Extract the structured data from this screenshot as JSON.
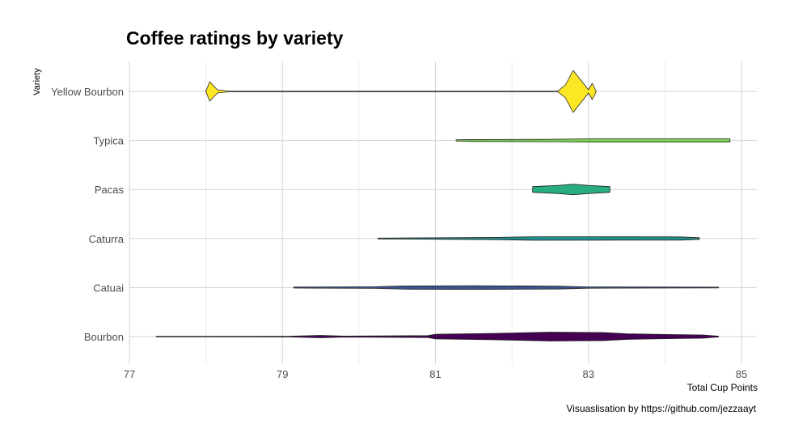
{
  "chart_data": {
    "type": "violin",
    "title": "Coffee ratings by variety",
    "xlabel": "Total Cup Points",
    "ylabel": "Variety",
    "caption": "Visuaslisation by https://github.com/jezzaayt",
    "xlim": [
      77,
      85.2
    ],
    "xticks": [
      77,
      79,
      81,
      83,
      85
    ],
    "grid": true,
    "categories": [
      "Bourbon",
      "Catuai",
      "Caturra",
      "Pacas",
      "Typica",
      "Yellow Bourbon"
    ],
    "series": [
      {
        "category": "Bourbon",
        "color": "#440154",
        "density": [
          [
            77.35,
            0.3
          ],
          [
            79.1,
            0.5
          ],
          [
            79.5,
            1.5
          ],
          [
            79.8,
            0.6
          ],
          [
            80.9,
            1.2
          ],
          [
            81.0,
            2.8
          ],
          [
            81.8,
            4.0
          ],
          [
            82.5,
            5.5
          ],
          [
            83.2,
            5.0
          ],
          [
            83.5,
            3.5
          ],
          [
            84.0,
            2.6
          ],
          [
            84.5,
            2.0
          ],
          [
            84.7,
            0.5
          ]
        ]
      },
      {
        "category": "Catuai",
        "color": "#3B528B",
        "density": [
          [
            79.15,
            0.6
          ],
          [
            80.2,
            1.0
          ],
          [
            80.6,
            2.0
          ],
          [
            81.5,
            2.3
          ],
          [
            82.6,
            1.8
          ],
          [
            83.0,
            0.8
          ],
          [
            84.0,
            0.6
          ],
          [
            84.7,
            0.5
          ]
        ]
      },
      {
        "category": "Caturra",
        "color": "#21908C",
        "density": [
          [
            80.25,
            0.5
          ],
          [
            81.2,
            1.0
          ],
          [
            81.8,
            1.4
          ],
          [
            82.3,
            2.2
          ],
          [
            83.5,
            2.1
          ],
          [
            84.2,
            2.0
          ],
          [
            84.45,
            1.0
          ]
        ]
      },
      {
        "category": "Pacas",
        "color": "#27AD81",
        "density": [
          [
            82.27,
            3.5
          ],
          [
            82.6,
            5.0
          ],
          [
            82.8,
            6.5
          ],
          [
            83.0,
            5.0
          ],
          [
            83.28,
            3.5
          ]
        ]
      },
      {
        "category": "Typica",
        "color": "#7AD151",
        "density": [
          [
            81.27,
            0.8
          ],
          [
            81.5,
            1.2
          ],
          [
            82.5,
            1.5
          ],
          [
            83.0,
            2.0
          ],
          [
            84.85,
            2.0
          ]
        ]
      },
      {
        "category": "Yellow Bourbon",
        "color": "#FDE725",
        "density": [
          [
            78.0,
            0.4
          ],
          [
            78.05,
            12.0
          ],
          [
            78.15,
            2.0
          ],
          [
            78.3,
            0.4
          ],
          [
            82.6,
            0.4
          ],
          [
            82.7,
            8.0
          ],
          [
            82.8,
            26.0
          ],
          [
            82.95,
            8.0
          ],
          [
            83.0,
            2.0
          ],
          [
            83.05,
            10.0
          ],
          [
            83.1,
            0.4
          ]
        ]
      }
    ]
  }
}
